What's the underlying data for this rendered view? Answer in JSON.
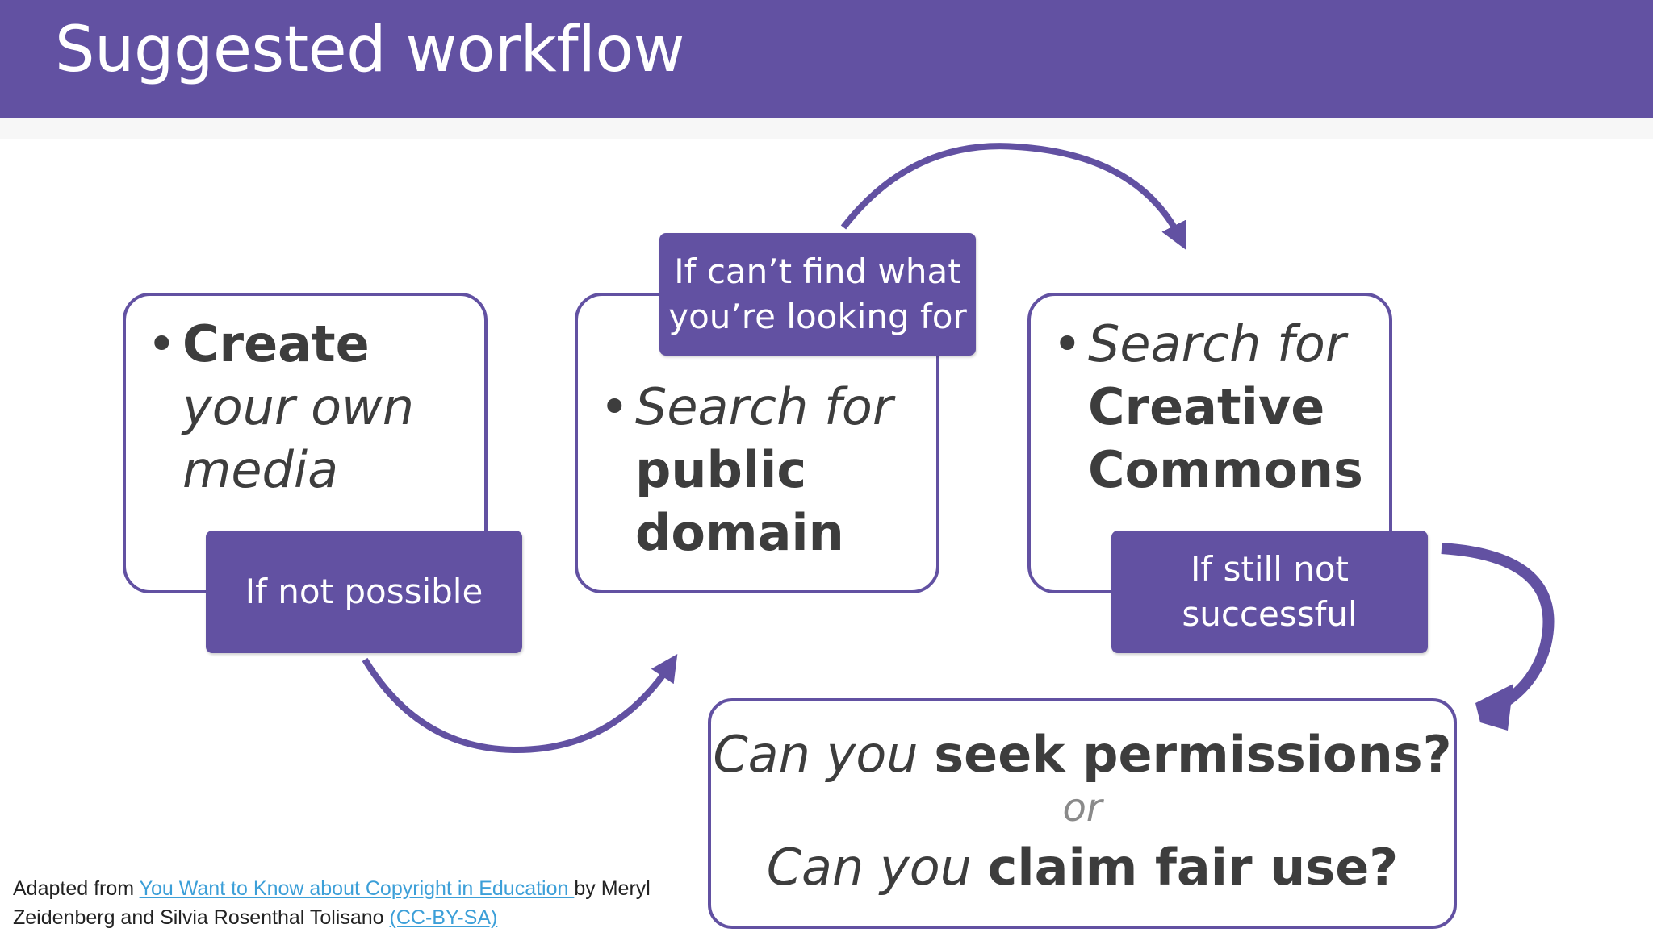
{
  "header": {
    "title": "Suggested workflow"
  },
  "boxes": {
    "create": {
      "bullet": "•",
      "bold": "Create",
      "italic_1": "your own",
      "italic_2": "media"
    },
    "public_domain": {
      "bullet": "•",
      "italic": "Search for",
      "bold_1": "public",
      "bold_2": "domain"
    },
    "creative_commons": {
      "bullet": "•",
      "italic": "Search for",
      "bold_1": "Creative",
      "bold_2": "Commons"
    }
  },
  "labels": {
    "not_possible": "If not possible",
    "cant_find_1": "If can’t find what",
    "cant_find_2": "you’re looking for",
    "still_not_1": "If still not",
    "still_not_2": "successful"
  },
  "final_box": {
    "line1_italic": "Can you ",
    "line1_bold": "seek permissions?",
    "or": "or",
    "line2_italic": "Can you ",
    "line2_bold": "claim fair use?"
  },
  "footer": {
    "prefix": "Adapted from ",
    "link_text": "You Want to Know about Copyright in Education ",
    "middle": "by Meryl Zeidenberg and Silvia Rosenthal Tolisano ",
    "license": "(CC-BY-SA)"
  },
  "colors": {
    "accent": "#6251a2",
    "text": "#3d3d3d",
    "link": "#3c9fd8"
  }
}
